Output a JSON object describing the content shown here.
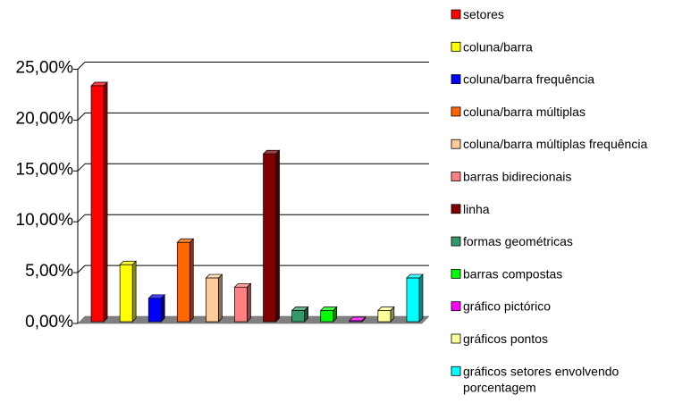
{
  "chart_data": {
    "type": "bar",
    "style": "3d-column",
    "title": "",
    "xlabel": "",
    "ylabel": "",
    "ylim": [
      0,
      25
    ],
    "y_tick_format": "percent_comma_2dp",
    "y_ticks": [
      "0,00%",
      "5,00%",
      "10,00%",
      "15,00%",
      "20,00%",
      "25,00%"
    ],
    "grid": "horizontal",
    "legend_position": "right",
    "series": [
      {
        "name": "setores",
        "value": 23.2,
        "color": "#ff0000"
      },
      {
        "name": "coluna/barra",
        "value": 5.6,
        "color": "#ffff00"
      },
      {
        "name": "coluna/barra frequência",
        "value": 2.3,
        "color": "#0000ff"
      },
      {
        "name": "coluna/barra múltiplas",
        "value": 7.8,
        "color": "#ff6600"
      },
      {
        "name": "coluna/barra múltiplas frequência",
        "value": 4.3,
        "color": "#ffcc99"
      },
      {
        "name": "barras bidirecionais",
        "value": 3.4,
        "color": "#ff8080"
      },
      {
        "name": "linha",
        "value": 16.5,
        "color": "#800000"
      },
      {
        "name": "formas geométricas",
        "value": 1.1,
        "color": "#339966"
      },
      {
        "name": "barras compostas",
        "value": 1.1,
        "color": "#00ff00"
      },
      {
        "name": "gráfico pictórico",
        "value": 0.1,
        "color": "#ff00ff"
      },
      {
        "name": "gráficos pontos",
        "value": 1.1,
        "color": "#ffff99"
      },
      {
        "name": "gráficos setores envolvendo porcentagem",
        "value": 4.3,
        "color": "#00ffff"
      }
    ]
  }
}
